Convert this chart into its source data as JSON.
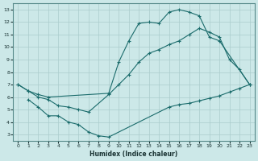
{
  "xlabel": "Humidex (Indice chaleur)",
  "bg_color": "#cce8e8",
  "grid_color": "#aacccc",
  "line_color": "#1a6b6b",
  "xlim": [
    -0.5,
    23.5
  ],
  "ylim": [
    2.5,
    13.5
  ],
  "xticks": [
    0,
    1,
    2,
    3,
    4,
    5,
    6,
    7,
    8,
    9,
    10,
    11,
    12,
    13,
    14,
    15,
    16,
    17,
    18,
    19,
    20,
    21,
    22,
    23
  ],
  "yticks": [
    3,
    4,
    5,
    6,
    7,
    8,
    9,
    10,
    11,
    12,
    13
  ],
  "line1_x": [
    0,
    1,
    2,
    3,
    9,
    10,
    11,
    12,
    13,
    14,
    15,
    16,
    17,
    18,
    19,
    20,
    23
  ],
  "line1_y": [
    7.0,
    6.5,
    6.2,
    6.0,
    6.3,
    8.8,
    10.5,
    11.9,
    12.0,
    11.9,
    12.8,
    13.0,
    12.8,
    12.5,
    10.8,
    10.5,
    7.0
  ],
  "line2_x": [
    0,
    1,
    2,
    3,
    4,
    5,
    6,
    7,
    9,
    10,
    11,
    12,
    13,
    14,
    15,
    16,
    17,
    18,
    19,
    20,
    21,
    22,
    23
  ],
  "line2_y": [
    7.0,
    6.5,
    6.0,
    5.8,
    5.3,
    5.2,
    5.0,
    4.8,
    6.2,
    7.0,
    7.8,
    8.8,
    9.5,
    9.8,
    10.2,
    10.5,
    11.0,
    11.5,
    11.2,
    10.8,
    9.0,
    8.2,
    7.0
  ],
  "line3_x": [
    1,
    2,
    3,
    4,
    5,
    6,
    7,
    8,
    9,
    15,
    16,
    17,
    18,
    19,
    20,
    21,
    22,
    23
  ],
  "line3_y": [
    5.8,
    5.2,
    4.5,
    4.5,
    4.0,
    3.8,
    3.2,
    2.9,
    2.8,
    5.2,
    5.4,
    5.5,
    5.7,
    5.9,
    6.1,
    6.4,
    6.7,
    7.0
  ]
}
